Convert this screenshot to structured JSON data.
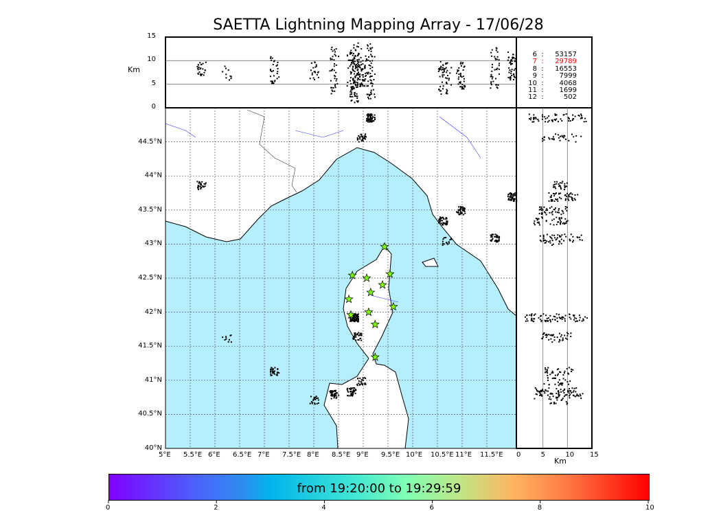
{
  "chart_data": {
    "type": "scatter",
    "title": "SAETTA Lightning Mapping Array - 17/06/28",
    "map": {
      "lon_range": [
        5,
        12.05
      ],
      "lat_range": [
        40,
        44.95
      ],
      "lon_ticks": [
        "5°E",
        "5.5°E",
        "6°E",
        "6.5°E",
        "7°E",
        "7.5°E",
        "8°E",
        "8.5°E",
        "9°E",
        "9.5°E",
        "10°E",
        "10.5°E",
        "11°E",
        "11.5°E"
      ],
      "lat_ticks": [
        "40°N",
        "40.5°N",
        "41°N",
        "41.5°N",
        "42°N",
        "42.5°N",
        "43°N",
        "43.5°N",
        "44°N",
        "44.5°N"
      ],
      "sea_color": "#b5eefc"
    },
    "altitude_panel": {
      "ylabel": "Km",
      "ylim": [
        0,
        15
      ],
      "ticks": [
        "0",
        "5",
        "10",
        "15"
      ]
    },
    "side_panel": {
      "xlabel": "Km",
      "xlim": [
        0,
        15
      ],
      "ticks": [
        "0",
        "5",
        "10",
        "15"
      ]
    },
    "station_counts": [
      {
        "k": "6",
        "v": "53157",
        "color": "#000000"
      },
      {
        "k": "7",
        "v": "29789",
        "color": "#ff0000"
      },
      {
        "k": "8",
        "v": "16553",
        "color": "#000000"
      },
      {
        "k": "9",
        "v": "7999",
        "color": "#000000"
      },
      {
        "k": "10",
        "v": "4068",
        "color": "#000000"
      },
      {
        "k": "11",
        "v": "1699",
        "color": "#000000"
      },
      {
        "k": "12",
        "v": "502",
        "color": "#000000"
      }
    ],
    "stations": [
      [
        9.43,
        42.96
      ],
      [
        8.78,
        42.54
      ],
      [
        9.07,
        42.5
      ],
      [
        9.54,
        42.56
      ],
      [
        9.39,
        42.4
      ],
      [
        9.15,
        42.29
      ],
      [
        8.71,
        42.19
      ],
      [
        9.61,
        42.08
      ],
      [
        9.11,
        42.0
      ],
      [
        8.75,
        41.96
      ],
      [
        9.24,
        41.82
      ],
      [
        9.24,
        41.34
      ]
    ],
    "clusters": [
      {
        "lon": 9.14,
        "lat": 44.86,
        "alt": [
          2,
          14
        ],
        "time": 8.3,
        "n": 60
      },
      {
        "lon": 8.96,
        "lat": 44.57,
        "alt": [
          4,
          13
        ],
        "time": 8.6,
        "n": 30
      },
      {
        "lon": 5.72,
        "lat": 43.87,
        "alt": [
          7,
          10
        ],
        "time": 7.5,
        "n": 25
      },
      {
        "lon": 12.0,
        "lat": 43.7,
        "alt": [
          6,
          12
        ],
        "time": 2.2,
        "n": 50
      },
      {
        "lon": 10.96,
        "lat": 43.5,
        "alt": [
          4,
          10
        ],
        "time": 5.0,
        "n": 40
      },
      {
        "lon": 10.6,
        "lat": 43.35,
        "alt": [
          3,
          10
        ],
        "time": 6.7,
        "n": 40
      },
      {
        "lon": 11.65,
        "lat": 43.1,
        "alt": [
          4,
          13
        ],
        "time": 8.7,
        "n": 40
      },
      {
        "lon": 10.68,
        "lat": 43.05,
        "alt": [
          5,
          9
        ],
        "time": 0.5,
        "n": 15
      },
      {
        "lon": 8.8,
        "lat": 41.93,
        "alt": [
          1,
          14
        ],
        "time": 9.0,
        "n": 80
      },
      {
        "lon": 8.87,
        "lat": 41.65,
        "alt": [
          4,
          11
        ],
        "time": 7.8,
        "n": 30
      },
      {
        "lon": 7.2,
        "lat": 41.14,
        "alt": [
          5,
          11
        ],
        "time": 8.0,
        "n": 30
      },
      {
        "lon": 6.23,
        "lat": 41.63,
        "alt": [
          6,
          9
        ],
        "time": 2.0,
        "n": 10
      },
      {
        "lon": 8.75,
        "lat": 40.84,
        "alt": [
          3,
          12
        ],
        "time": 5.5,
        "n": 40
      },
      {
        "lon": 8.4,
        "lat": 40.8,
        "alt": [
          3,
          13
        ],
        "time": 8.5,
        "n": 40
      },
      {
        "lon": 8.0,
        "lat": 40.72,
        "alt": [
          6,
          10
        ],
        "time": 6.5,
        "n": 20
      },
      {
        "lon": 8.95,
        "lat": 40.99,
        "alt": [
          5,
          11
        ],
        "time": 2.5,
        "n": 25
      }
    ],
    "colorbar": {
      "label": "from 19:20:00 to 19:29:59",
      "range": [
        0,
        10
      ],
      "ticks": [
        "0",
        "2",
        "4",
        "6",
        "8",
        "10"
      ]
    }
  }
}
